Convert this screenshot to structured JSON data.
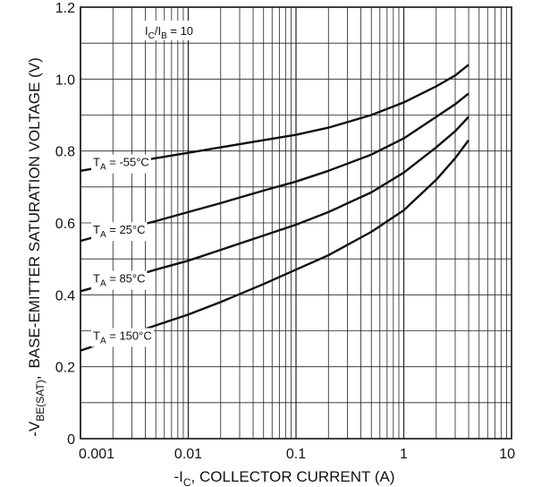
{
  "chart_data": {
    "type": "line",
    "xscale": "log",
    "xlim": [
      0.001,
      10
    ],
    "ylim": [
      0,
      1.2
    ],
    "ylabel_main": "BASE-EMITTER SATURATION VOLTAGE (V)",
    "ylabel_prefix": "-V",
    "ylabel_sub": "BE(SAT)",
    "ylabel_comma": ",",
    "xlabel_prefix": "-I",
    "xlabel_sub": "C",
    "xlabel_rest": ", COLLECTOR CURRENT (A)",
    "x_tick_labels": [
      "0.001",
      "0.01",
      "0.1",
      "1",
      "10"
    ],
    "y_tick_labels": [
      "0",
      "0.2",
      "0.4",
      "0.6",
      "0.8",
      "1.0",
      "1.2"
    ],
    "x_ticks": [
      0.001,
      0.01,
      0.1,
      1,
      10
    ],
    "y_ticks": [
      0,
      0.2,
      0.4,
      0.6,
      0.8,
      1.0,
      1.2
    ],
    "grid": true,
    "condition": {
      "p1": "I",
      "s1": "C",
      "mid": "/I",
      "s2": "B",
      "rest": " = 10"
    },
    "series": [
      {
        "name": "T_A = -55°C",
        "label": {
          "pre": "T",
          "sub": "A",
          "post": " = -55°C"
        },
        "x": [
          0.001,
          0.002,
          0.005,
          0.01,
          0.02,
          0.05,
          0.1,
          0.2,
          0.5,
          1,
          2,
          3,
          4
        ],
        "y": [
          0.745,
          0.76,
          0.78,
          0.795,
          0.81,
          0.83,
          0.845,
          0.865,
          0.9,
          0.935,
          0.98,
          1.01,
          1.04
        ]
      },
      {
        "name": "T_A = 25°C",
        "label": {
          "pre": "T",
          "sub": "A",
          "post": " = 25°C"
        },
        "x": [
          0.001,
          0.002,
          0.005,
          0.01,
          0.02,
          0.05,
          0.1,
          0.2,
          0.5,
          1,
          2,
          3,
          4
        ],
        "y": [
          0.55,
          0.575,
          0.605,
          0.63,
          0.655,
          0.69,
          0.715,
          0.745,
          0.79,
          0.835,
          0.895,
          0.93,
          0.96
        ]
      },
      {
        "name": "T_A = 85°C",
        "label": {
          "pre": "T",
          "sub": "A",
          "post": " = 85°C"
        },
        "x": [
          0.001,
          0.002,
          0.005,
          0.01,
          0.02,
          0.05,
          0.1,
          0.2,
          0.5,
          1,
          2,
          3,
          4
        ],
        "y": [
          0.41,
          0.435,
          0.47,
          0.495,
          0.525,
          0.565,
          0.595,
          0.63,
          0.685,
          0.74,
          0.81,
          0.855,
          0.895
        ]
      },
      {
        "name": "T_A = 150°C",
        "label": {
          "pre": "T",
          "sub": "A",
          "post": " = 150°C"
        },
        "x": [
          0.001,
          0.002,
          0.005,
          0.01,
          0.02,
          0.05,
          0.1,
          0.2,
          0.5,
          1,
          2,
          3,
          4
        ],
        "y": [
          0.245,
          0.275,
          0.315,
          0.345,
          0.38,
          0.43,
          0.47,
          0.51,
          0.575,
          0.635,
          0.72,
          0.78,
          0.83
        ]
      }
    ]
  }
}
